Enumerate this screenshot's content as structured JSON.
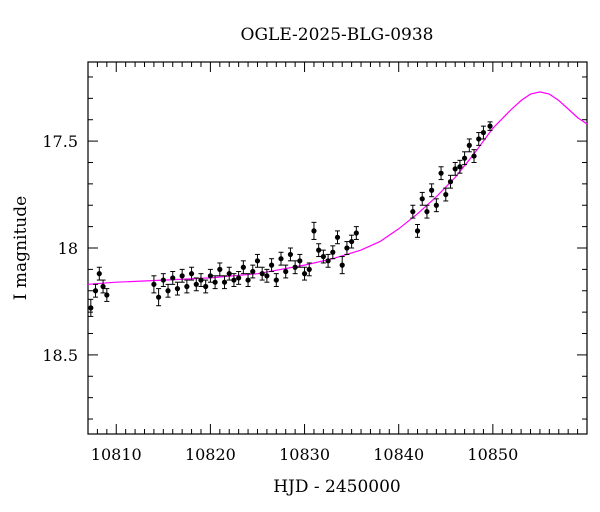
{
  "chart_data": {
    "type": "scatter",
    "title": "OGLE-2025-BLG-0938",
    "xlabel": "HJD - 2450000",
    "ylabel": "I magnitude",
    "xlim": [
      10807,
      10860
    ],
    "ylim": [
      18.87,
      17.13
    ],
    "y_inverted": true,
    "x_ticks": [
      10810,
      10820,
      10830,
      10840,
      10850
    ],
    "y_ticks": [
      17.5,
      18,
      18.5
    ],
    "x_tick_labels": [
      "10810",
      "10820",
      "10830",
      "10840",
      "10850"
    ],
    "y_tick_labels": [
      "17.5",
      "18",
      "18.5"
    ],
    "grid": false,
    "colors": {
      "points": "#000000",
      "model": "#ff00ff"
    },
    "series": [
      {
        "kind": "points",
        "x": [
          10807.3,
          10807.8,
          10808.2,
          10808.6,
          10809.0,
          10814.0,
          10814.5,
          10815.0,
          10815.5,
          10816.0,
          10816.5,
          10817.0,
          10817.5,
          10818.0,
          10818.5,
          10819.0,
          10819.5,
          10820.0,
          10820.5,
          10821.0,
          10821.5,
          10822.0,
          10822.5,
          10823.0,
          10823.5,
          10824.0,
          10824.5,
          10825.0,
          10825.5,
          10826.0,
          10826.5,
          10827.0,
          10827.5,
          10828.0,
          10828.5,
          10829.0,
          10829.5,
          10830.0,
          10830.5,
          10831.0,
          10831.5,
          10832.0,
          10832.5,
          10833.0,
          10833.5,
          10834.0,
          10834.5,
          10835.0,
          10835.5,
          10841.5,
          10842.0,
          10842.5,
          10843.0,
          10843.5,
          10844.0,
          10844.5,
          10845.0,
          10845.5,
          10846.0,
          10846.5,
          10847.0,
          10847.5,
          10848.0,
          10848.5,
          10849.0,
          10849.7
        ],
        "y": [
          18.28,
          18.2,
          18.12,
          18.18,
          18.22,
          18.17,
          18.23,
          18.15,
          18.2,
          18.14,
          18.19,
          18.13,
          18.18,
          18.12,
          18.17,
          18.15,
          18.18,
          18.13,
          18.16,
          18.1,
          18.16,
          18.12,
          18.15,
          18.14,
          18.09,
          18.15,
          18.11,
          18.06,
          18.12,
          18.13,
          18.08,
          18.15,
          18.05,
          18.11,
          18.03,
          18.09,
          18.06,
          18.12,
          18.1,
          17.92,
          18.01,
          18.04,
          18.06,
          18.02,
          17.95,
          18.08,
          18.0,
          17.97,
          17.93,
          17.83,
          17.92,
          17.77,
          17.83,
          17.73,
          17.8,
          17.65,
          17.75,
          17.69,
          17.63,
          17.62,
          17.58,
          17.52,
          17.57,
          17.49,
          17.46,
          17.43
        ],
        "yerr": [
          0.04,
          0.03,
          0.03,
          0.03,
          0.03,
          0.04,
          0.04,
          0.03,
          0.03,
          0.03,
          0.03,
          0.03,
          0.03,
          0.03,
          0.03,
          0.03,
          0.03,
          0.03,
          0.03,
          0.03,
          0.03,
          0.03,
          0.03,
          0.03,
          0.03,
          0.03,
          0.03,
          0.03,
          0.03,
          0.03,
          0.03,
          0.03,
          0.03,
          0.03,
          0.03,
          0.03,
          0.03,
          0.03,
          0.03,
          0.04,
          0.03,
          0.03,
          0.03,
          0.03,
          0.03,
          0.04,
          0.03,
          0.03,
          0.03,
          0.03,
          0.03,
          0.03,
          0.03,
          0.03,
          0.03,
          0.03,
          0.03,
          0.03,
          0.03,
          0.03,
          0.03,
          0.03,
          0.03,
          0.03,
          0.03,
          0.02
        ]
      },
      {
        "kind": "line",
        "x": [
          10807,
          10810,
          10815,
          10820,
          10825,
          10830,
          10833,
          10836,
          10838,
          10840,
          10842,
          10844,
          10846,
          10848,
          10850,
          10852,
          10853,
          10854,
          10855,
          10856,
          10857,
          10858,
          10859,
          10860
        ],
        "y": [
          18.17,
          18.16,
          18.15,
          18.14,
          18.12,
          18.08,
          18.05,
          18.01,
          17.97,
          17.91,
          17.84,
          17.76,
          17.67,
          17.56,
          17.44,
          17.35,
          17.31,
          17.28,
          17.27,
          17.28,
          17.31,
          17.35,
          17.39,
          17.42
        ]
      }
    ]
  }
}
